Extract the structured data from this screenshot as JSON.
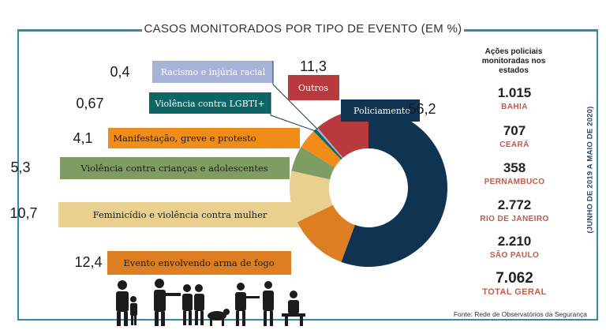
{
  "title": "CASOS MONITORADOS POR TIPO DE EVENTO (EM %)",
  "period_note": "(JUNHO DE 2019 A MAIO DE 2020)",
  "source": "Fonte: Rede de Observatórios da Segurança",
  "chart_data": {
    "type": "pie",
    "style": "donut",
    "title": "CASOS MONITORADOS POR TIPO DE EVENTO (EM %)",
    "unit": "%",
    "slices": [
      {
        "label": "Policiamento",
        "value": 56.2,
        "color": "#0f3350"
      },
      {
        "label": "Evento envolvendo arma de fogo",
        "value": 12.4,
        "color": "#dd7e22"
      },
      {
        "label": "Feminicídio e violência contra mulher",
        "value": 10.7,
        "color": "#e8d18f"
      },
      {
        "label": "Violência contra crianças e adolescentes",
        "value": 5.3,
        "color": "#7f9d62"
      },
      {
        "label": "Manifestação, greve e protesto",
        "value": 4.1,
        "color": "#f08d18"
      },
      {
        "label": "Violência contra LGBTI+",
        "value": 0.67,
        "color": "#0d6666"
      },
      {
        "label": "Racismo e injúria racial",
        "value": 0.4,
        "color": "#a7b2d6"
      },
      {
        "label": "Outros",
        "value": 11.3,
        "color": "#b83a3f"
      }
    ]
  },
  "sidebar": {
    "header": "Ações policiais monitoradas nos estados",
    "states": [
      {
        "value": "1.015",
        "name": "BAHIA"
      },
      {
        "value": "707",
        "name": "CEARÁ"
      },
      {
        "value": "358",
        "name": "PERNAMBUCO"
      },
      {
        "value": "2.772",
        "name": "RIO DE JANEIRO"
      },
      {
        "value": "2.210",
        "name": "SÃO PAULO"
      }
    ],
    "total": {
      "value": "7.062",
      "name": "TOTAL GERAL"
    }
  }
}
